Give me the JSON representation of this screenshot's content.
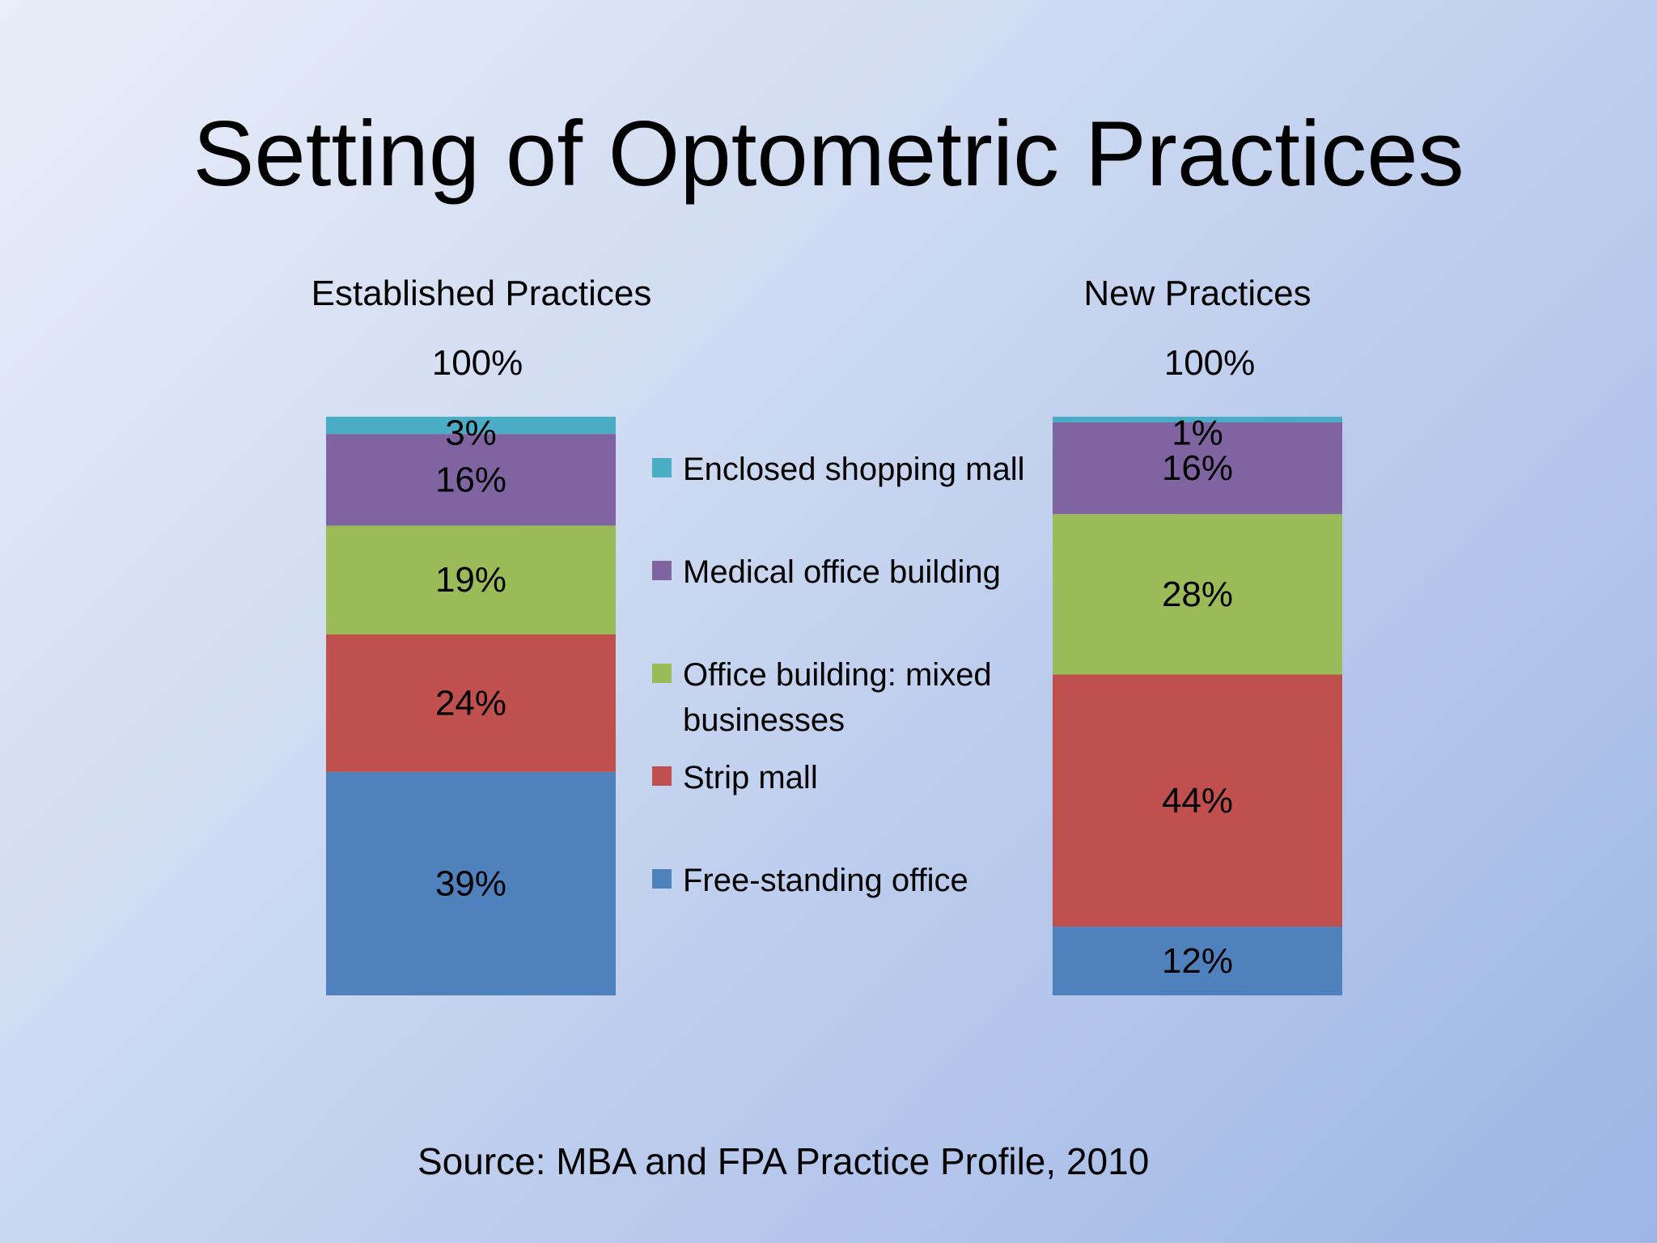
{
  "slide": {
    "title": "Setting of Optometric Practices",
    "source": "Source: MBA and FPA Practice Profile, 2010"
  },
  "chart_data": {
    "type": "bar",
    "stacked": true,
    "categories": [
      "Established Practices",
      "New Practices"
    ],
    "totals": [
      "100%",
      "100%"
    ],
    "unit": "%",
    "ylim": [
      0,
      100
    ],
    "grid": false,
    "legend_position": "center",
    "series": [
      {
        "name": "Free-standing office",
        "values": [
          39,
          12
        ],
        "color": "#4f81bd"
      },
      {
        "name": "Strip mall",
        "values": [
          24,
          44
        ],
        "color": "#c0504d"
      },
      {
        "name": "Office building: mixed businesses",
        "values": [
          19,
          28
        ],
        "color": "#9bbb59"
      },
      {
        "name": "Medical office building",
        "values": [
          16,
          16
        ],
        "color": "#8064a2"
      },
      {
        "name": "Enclosed shopping mall",
        "values": [
          3,
          1
        ],
        "color": "#4bacc6"
      }
    ]
  }
}
